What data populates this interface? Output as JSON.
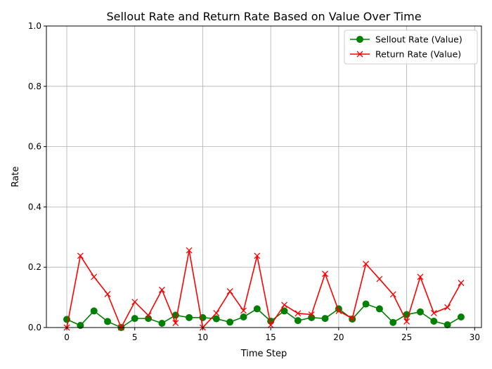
{
  "chart_data": {
    "type": "line",
    "title": "Sellout Rate and Return Rate Based on Value Over Time",
    "xlabel": "Time Step",
    "ylabel": "Rate",
    "xlim": [
      -1.5,
      30.5
    ],
    "ylim": [
      0,
      1.0
    ],
    "xticks": [
      0,
      5,
      10,
      15,
      20,
      25,
      30
    ],
    "yticks": [
      0.0,
      0.2,
      0.4,
      0.6,
      0.8,
      1.0
    ],
    "xtick_labels": [
      "0",
      "5",
      "10",
      "15",
      "20",
      "25",
      "30"
    ],
    "ytick_labels": [
      "0.0",
      "0.2",
      "0.4",
      "0.6",
      "0.8",
      "1.0"
    ],
    "grid": true,
    "legend_position": "top-right",
    "x": [
      0,
      1,
      2,
      3,
      4,
      5,
      6,
      7,
      8,
      9,
      10,
      11,
      12,
      13,
      14,
      15,
      16,
      17,
      18,
      19,
      20,
      21,
      22,
      23,
      24,
      25,
      26,
      27,
      28,
      29
    ],
    "series": [
      {
        "name": "Sellout Rate (Value)",
        "color": "#008000",
        "marker": "circle",
        "values": [
          0.027,
          0.007,
          0.055,
          0.02,
          0.0,
          0.03,
          0.03,
          0.014,
          0.041,
          0.033,
          0.033,
          0.029,
          0.018,
          0.035,
          0.062,
          0.021,
          0.055,
          0.023,
          0.033,
          0.03,
          0.062,
          0.028,
          0.078,
          0.062,
          0.017,
          0.043,
          0.052,
          0.021,
          0.009,
          0.035
        ]
      },
      {
        "name": "Return Rate (Value)",
        "color": "#ff0000",
        "marker": "x",
        "values": [
          0.0,
          0.238,
          0.168,
          0.111,
          0.0,
          0.085,
          0.04,
          0.125,
          0.015,
          0.256,
          0.0,
          0.048,
          0.12,
          0.056,
          0.238,
          0.008,
          0.075,
          0.047,
          0.043,
          0.178,
          0.055,
          0.03,
          0.211,
          0.161,
          0.11,
          0.02,
          0.168,
          0.048,
          0.067,
          0.148
        ]
      }
    ]
  }
}
